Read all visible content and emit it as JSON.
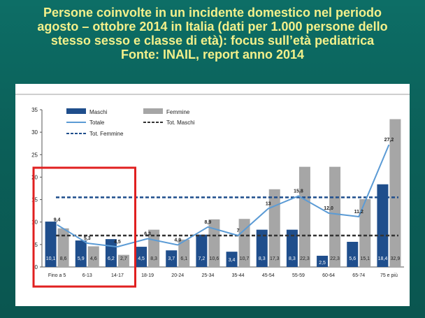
{
  "title_lines": [
    "Persone coinvolte in un incidente domestico nel periodo",
    "agosto – ottobre 2014 in Italia (dati per 1.000 persone dello",
    "stesso sesso e classe di età): focus sull’età pediatrica",
    "Fonte: INAIL, report anno 2014"
  ],
  "chart_data": {
    "type": "bar",
    "categories": [
      "Fino a 5",
      "6-13",
      "14-17",
      "18-19",
      "20-24",
      "25-34",
      "35-44",
      "45-54",
      "55-59",
      "60-64",
      "65-74",
      "75 e più"
    ],
    "series": [
      {
        "name": "Maschi",
        "type": "bar",
        "color": "#1f4e8c",
        "values": [
          10.1,
          5.9,
          6.2,
          4.5,
          3.7,
          7.2,
          3.4,
          8.3,
          8.3,
          2.5,
          5.6,
          18.4
        ],
        "labels": [
          "10,1",
          "5,9",
          "6,2",
          "4,5",
          "3,7",
          "7,2",
          "3,4",
          "8,3",
          "8,3",
          "2,5",
          "5,6",
          "18,4"
        ]
      },
      {
        "name": "Femmine",
        "type": "bar",
        "color": "#a6a6a6",
        "values": [
          8.6,
          4.6,
          2.7,
          8.3,
          6.1,
          10.6,
          10.7,
          17.3,
          22.3,
          22.3,
          15.1,
          32.9
        ],
        "labels": [
          "8,6",
          "4,6",
          "2,7",
          "8,3",
          "6,1",
          "10,6",
          "10,7",
          "17,3",
          "22,3",
          "22,3",
          "15,1",
          "32,9"
        ]
      },
      {
        "name": "Totale",
        "type": "line",
        "color": "#5b9bd5",
        "values": [
          9.4,
          5.3,
          4.5,
          6.3,
          4.9,
          8.9,
          7.0,
          13.0,
          15.8,
          12.0,
          11.2,
          27.2
        ],
        "labels": [
          "9,4",
          "5,3",
          "4,5",
          "6,3",
          "4,9",
          "8,9",
          "7",
          "13",
          "15,8",
          "12,0",
          "11,2",
          "27,2"
        ]
      }
    ],
    "reference_lines": [
      {
        "name": "Tot. Maschi",
        "value": 7.0,
        "color": "#333333",
        "style": "dashed"
      },
      {
        "name": "Tot. Femmine",
        "value": 15.5,
        "color": "#1f4e8c",
        "style": "dashed"
      }
    ],
    "y_ticks": [
      "35",
      "30",
      "25",
      "20",
      "15",
      "10",
      "5",
      "0"
    ],
    "ylim": [
      0,
      35
    ],
    "legend_position": "top-left",
    "highlight_box": {
      "from_category": "Fino a 5",
      "to_category": "14-17",
      "color": "#e02020"
    }
  }
}
